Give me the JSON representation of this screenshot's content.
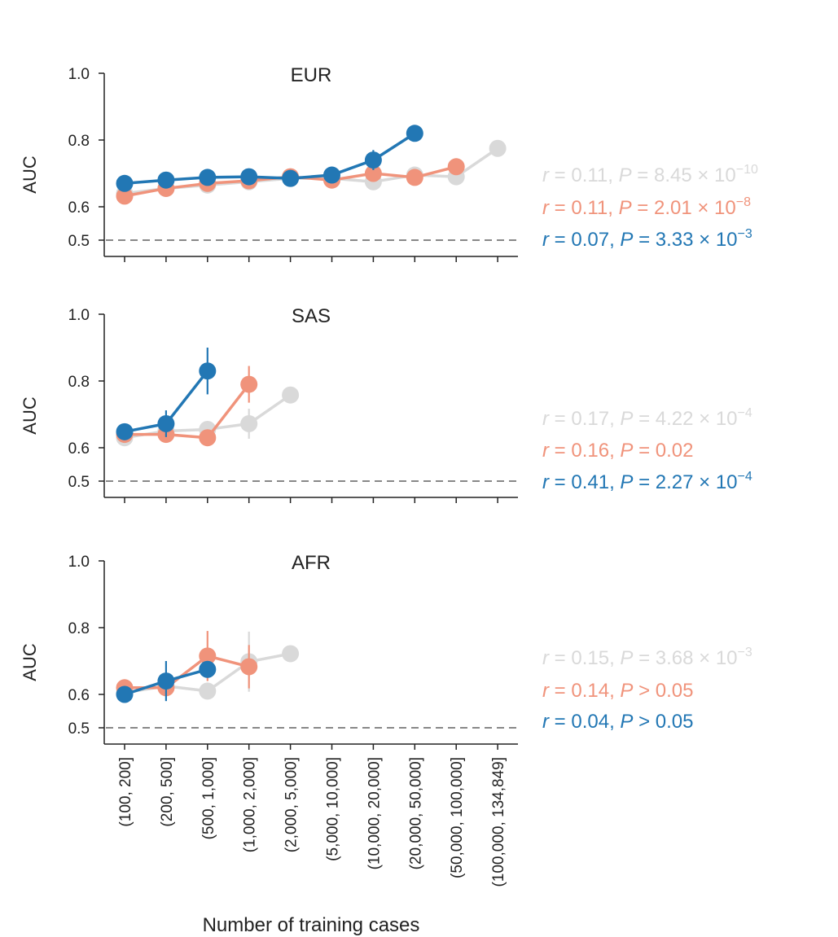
{
  "chart_data": {
    "type": "line",
    "xlabel": "Number of training cases",
    "categories": [
      "(100, 200]",
      "(200, 500]",
      "(500, 1,000]",
      "(1,000, 2,000]",
      "(2,000, 5,000]",
      "(5,000, 10,000]",
      "(10,000, 20,000]",
      "(20,000, 50,000]",
      "(50,000, 100,000]",
      "(100,000, 134,849]"
    ],
    "colors": {
      "grey": "#d9d9d9",
      "orange": "#f0937b",
      "blue": "#2277b4",
      "reference": "#888888"
    },
    "panels": [
      {
        "title": "EUR",
        "ylabel": "AUC",
        "ylim": [
          0.45,
          1.0
        ],
        "yticks": [
          0.5,
          0.6,
          0.8,
          1.0
        ],
        "ytick_labels": [
          "0.5",
          "0.6",
          "0.8",
          "1.0"
        ],
        "reference_line": 0.5,
        "series": [
          {
            "name": "grey",
            "values": [
              0.64,
              0.655,
              0.665,
              0.675,
              0.685,
              0.685,
              0.675,
              0.695,
              0.69,
              0.775
            ],
            "err": [
              0.01,
              0.01,
              0.01,
              0.01,
              0.01,
              0.01,
              0.01,
              0.01,
              0.02,
              0.01
            ]
          },
          {
            "name": "orange",
            "values": [
              0.632,
              0.655,
              0.67,
              0.678,
              0.69,
              0.68,
              0.7,
              0.688,
              0.72,
              null
            ],
            "err": [
              0.01,
              0.01,
              0.01,
              0.01,
              0.01,
              0.01,
              0.015,
              0.01,
              0.025,
              null
            ]
          },
          {
            "name": "blue",
            "values": [
              0.67,
              0.68,
              0.688,
              0.69,
              0.685,
              0.695,
              0.74,
              0.82,
              null,
              null
            ],
            "err": [
              0.01,
              0.01,
              0.01,
              0.01,
              0.01,
              0.02,
              0.03,
              0.01,
              null,
              null
            ]
          }
        ],
        "stats": [
          {
            "color": "grey",
            "r_label": "r",
            "r_value": " = 0.11, ",
            "p_label": "P",
            "p_value": " = 8.45 × 10",
            "exponent": "−10"
          },
          {
            "color": "orange",
            "r_label": "r",
            "r_value": " = 0.11, ",
            "p_label": "P",
            "p_value": " = 2.01 × 10",
            "exponent": "−8"
          },
          {
            "color": "blue",
            "r_label": "r",
            "r_value": " = 0.07, ",
            "p_label": "P",
            "p_value": " = 3.33 × 10",
            "exponent": "−3"
          }
        ]
      },
      {
        "title": "SAS",
        "ylabel": "AUC",
        "ylim": [
          0.45,
          1.0
        ],
        "yticks": [
          0.5,
          0.6,
          0.8,
          1.0
        ],
        "ytick_labels": [
          "0.5",
          "0.6",
          "0.8",
          "1.0"
        ],
        "reference_line": 0.5,
        "series": [
          {
            "name": "grey",
            "values": [
              0.63,
              0.65,
              0.655,
              0.672,
              0.758,
              null,
              null,
              null,
              null,
              null
            ],
            "err": [
              0.01,
              0.01,
              0.02,
              0.045,
              0.01,
              null,
              null,
              null,
              null,
              null
            ]
          },
          {
            "name": "orange",
            "values": [
              0.64,
              0.64,
              0.63,
              0.79,
              null,
              null,
              null,
              null,
              null,
              null
            ],
            "err": [
              0.015,
              0.015,
              0.015,
              0.055,
              null,
              null,
              null,
              null,
              null,
              null
            ]
          },
          {
            "name": "blue",
            "values": [
              0.648,
              0.672,
              0.83,
              null,
              null,
              null,
              null,
              null,
              null,
              null
            ],
            "err": [
              0.02,
              0.04,
              0.07,
              null,
              null,
              null,
              null,
              null,
              null,
              null
            ]
          }
        ],
        "stats": [
          {
            "color": "grey",
            "r_label": "r",
            "r_value": " = 0.17, ",
            "p_label": "P",
            "p_value": " = 4.22 × 10",
            "exponent": "−4"
          },
          {
            "color": "orange",
            "r_label": "r",
            "r_value": " = 0.16, ",
            "p_label": "P",
            "p_value": " = 0.02",
            "exponent": ""
          },
          {
            "color": "blue",
            "r_label": "r",
            "r_value": " = 0.41, ",
            "p_label": "P",
            "p_value": " = 2.27 × 10",
            "exponent": "−4"
          }
        ]
      },
      {
        "title": "AFR",
        "ylabel": "AUC",
        "ylim": [
          0.45,
          1.0
        ],
        "yticks": [
          0.5,
          0.6,
          0.8,
          1.0
        ],
        "ytick_labels": [
          "0.5",
          "0.6",
          "0.8",
          "1.0"
        ],
        "reference_line": 0.5,
        "series": [
          {
            "name": "grey",
            "values": [
              0.605,
              0.625,
              0.61,
              0.698,
              0.722,
              null,
              null,
              null,
              null,
              null
            ],
            "err": [
              0.01,
              0.01,
              0.01,
              0.09,
              0.01,
              null,
              null,
              null,
              null,
              null
            ]
          },
          {
            "name": "orange",
            "values": [
              0.62,
              0.62,
              0.715,
              0.683,
              null,
              null,
              null,
              null,
              null,
              null
            ],
            "err": [
              0.015,
              0.015,
              0.075,
              0.065,
              null,
              null,
              null,
              null,
              null,
              null
            ]
          },
          {
            "name": "blue",
            "values": [
              0.6,
              0.64,
              0.675,
              null,
              null,
              null,
              null,
              null,
              null,
              null
            ],
            "err": [
              0.01,
              0.06,
              0.01,
              null,
              null,
              null,
              null,
              null,
              null,
              null
            ]
          }
        ],
        "stats": [
          {
            "color": "grey",
            "r_label": "r",
            "r_value": " = 0.15, ",
            "p_label": "P",
            "p_value": " = 3.68 × 10",
            "exponent": "−3"
          },
          {
            "color": "orange",
            "r_label": "r",
            "r_value": " = 0.14, ",
            "p_label": "P",
            "p_value": " > 0.05",
            "exponent": ""
          },
          {
            "color": "blue",
            "r_label": "r",
            "r_value": " = 0.04, ",
            "p_label": "P",
            "p_value": " > 0.05",
            "exponent": ""
          }
        ]
      }
    ]
  }
}
